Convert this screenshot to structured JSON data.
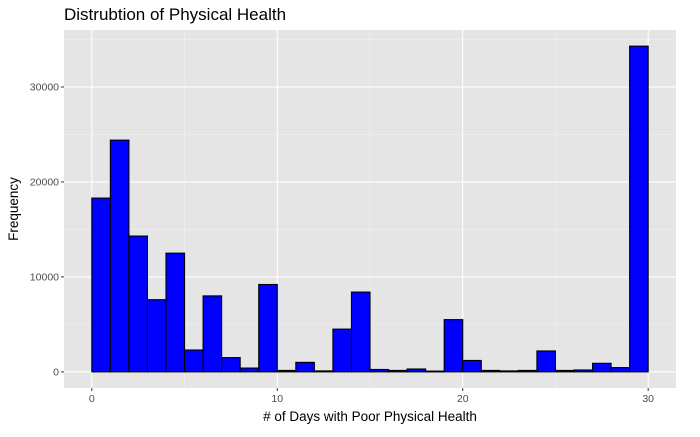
{
  "chart_data": {
    "type": "bar",
    "title": "Distrubtion of Physical Health",
    "xlabel": "# of Days with Poor Physical Health",
    "ylabel": "Frequency",
    "x": [
      0.5,
      1.5,
      2.5,
      3.5,
      4.5,
      5.5,
      6.5,
      7.5,
      8.5,
      9.5,
      10.5,
      11.5,
      12.5,
      13.5,
      14.5,
      15.5,
      16.5,
      17.5,
      18.5,
      19.5,
      20.5,
      21.5,
      22.5,
      23.5,
      24.5,
      25.5,
      26.5,
      27.5,
      28.5,
      29.5
    ],
    "bin_width": 1,
    "values": [
      18300,
      24400,
      14300,
      7600,
      12500,
      2300,
      8000,
      1500,
      400,
      9200,
      150,
      1000,
      100,
      4500,
      8400,
      250,
      150,
      300,
      80,
      5500,
      1200,
      150,
      100,
      150,
      2200,
      150,
      200,
      900,
      450,
      34300
    ],
    "xlim": [
      -1.5,
      31.5
    ],
    "ylim": [
      -1700,
      36000
    ],
    "x_ticks": [
      0,
      10,
      20,
      30
    ],
    "x_tick_labels": [
      "0",
      "10",
      "20",
      "30"
    ],
    "y_ticks": [
      0,
      10000,
      20000,
      30000
    ],
    "y_tick_labels": [
      "0",
      "10000",
      "20000",
      "30000"
    ],
    "grid": true,
    "colors": {
      "bar_fill": "#0000ff",
      "bar_stroke": "#000000",
      "panel_background": "#e5e5e5",
      "grid_major": "#ffffff",
      "grid_minor": "#f2f2f2"
    }
  }
}
